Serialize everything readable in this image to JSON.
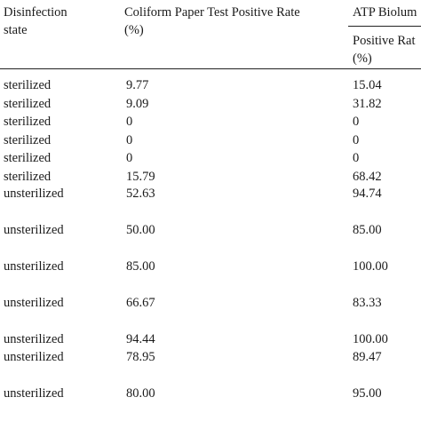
{
  "table": {
    "headers": {
      "state_line1": "Disinfection",
      "state_line2": "state",
      "coliform_line1": "Coliform Paper Test Positive Rate",
      "coliform_line2": "(%)",
      "atp_group": "ATP Biolum",
      "atp_sub_line1": "Positive Rat",
      "atp_sub_line2": "(%)"
    },
    "rows": [
      {
        "state": "sterilized",
        "coliform": "9.77",
        "atp": "15.04"
      },
      {
        "state": "sterilized",
        "coliform": "9.09",
        "atp": "31.82"
      },
      {
        "state": "sterilized",
        "coliform": "0",
        "atp": "0"
      },
      {
        "state": "sterilized",
        "coliform": "0",
        "atp": "0"
      },
      {
        "state": "sterilized",
        "coliform": "0",
        "atp": "0"
      },
      {
        "state": "sterilized",
        "coliform": "15.79",
        "atp": "68.42"
      },
      {
        "state": "unsterilized",
        "coliform": "52.63",
        "atp": "94.74"
      },
      {
        "state": "unsterilized",
        "coliform": "50.00",
        "atp": "85.00"
      },
      {
        "state": "unsterilized",
        "coliform": "85.00",
        "atp": "100.00"
      },
      {
        "state": "unsterilized",
        "coliform": "66.67",
        "atp": "83.33"
      },
      {
        "state": "unsterilized",
        "coliform": "94.44",
        "atp": "100.00"
      },
      {
        "state": "unsterilized",
        "coliform": "78.95",
        "atp": "89.47"
      },
      {
        "state": "unsterilized",
        "coliform": "80.00",
        "atp": "95.00"
      }
    ]
  }
}
